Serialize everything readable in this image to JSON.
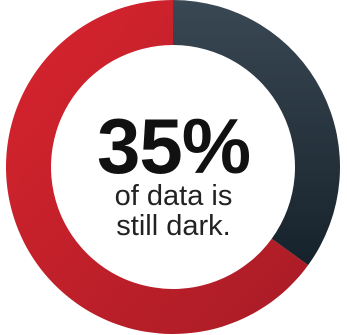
{
  "chart_data": {
    "type": "pie",
    "style": "donut",
    "slices": [
      {
        "value": 35,
        "color": "#1f2a33"
      },
      {
        "value": 65,
        "color": "#c41e28"
      }
    ],
    "center_value": "35%",
    "center_caption_line1": "of data is",
    "center_caption_line2": "still dark."
  },
  "colors": {
    "dark_segment": "#1f2a33",
    "dark_segment_light": "#3a4854",
    "red_segment": "#c41e28",
    "red_segment_light": "#d9242e"
  }
}
